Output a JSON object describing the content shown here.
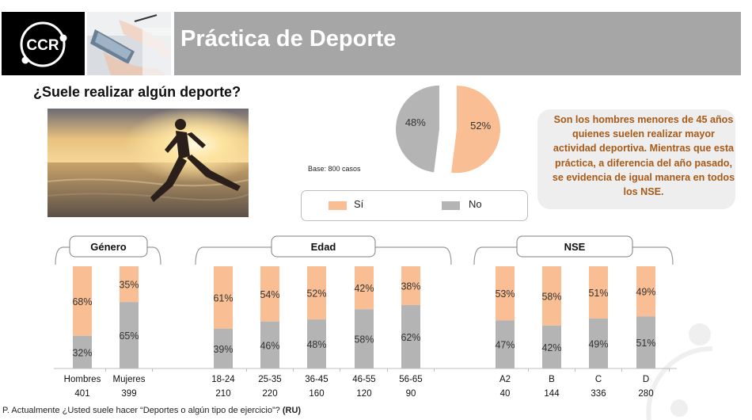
{
  "header": {
    "logo_text": "CCR",
    "title": "Práctica de Deporte"
  },
  "question": "¿Suele realizar algún deporte?",
  "base_note": "Base: 800 casos",
  "callout": "Son los hombres menores de 45 años quienes suelen realizar mayor actividad deportiva. Mientras que esta práctica, a diferencia del año pasado, se evidencia de igual manera en todos los NSE.",
  "legend": [
    {
      "label": "Sí",
      "color": "#f9be93"
    },
    {
      "label": "No",
      "color": "#b4b4b4"
    }
  ],
  "footnote": {
    "text": "P. Actualmente ¿Usted suele hacer “Deportes o algún tipo de ejercicio”?",
    "tag": "(RU)"
  },
  "chart_data": [
    {
      "type": "pie",
      "categories": [
        "Sí",
        "No"
      ],
      "values": [
        52,
        48
      ],
      "labels": [
        "52%",
        "48%"
      ],
      "colors": [
        "#f9be93",
        "#b4b4b4"
      ]
    },
    {
      "type": "bar",
      "stacked": true,
      "percent": true,
      "groups": [
        {
          "title": "Género",
          "categories": [
            "Hombres",
            "Mujeres"
          ],
          "bases": [
            401,
            399
          ]
        },
        {
          "title": "Edad",
          "categories": [
            "18-24",
            "25-35",
            "36-45",
            "46-55",
            "56-65"
          ],
          "bases": [
            210,
            220,
            160,
            120,
            90
          ]
        },
        {
          "title": "NSE",
          "categories": [
            "A2",
            "B",
            "C",
            "D"
          ],
          "bases": [
            40,
            144,
            336,
            280
          ]
        }
      ],
      "categories": [
        "Hombres",
        "Mujeres",
        "18-24",
        "25-35",
        "36-45",
        "46-55",
        "56-65",
        "A2",
        "B",
        "C",
        "D"
      ],
      "bases": [
        401,
        399,
        210,
        220,
        160,
        120,
        90,
        40,
        144,
        336,
        280
      ],
      "series": [
        {
          "name": "Sí",
          "color": "#f9be93",
          "values": [
            68,
            35,
            61,
            54,
            52,
            42,
            38,
            53,
            58,
            51,
            49
          ]
        },
        {
          "name": "No",
          "color": "#b4b4b4",
          "values": [
            32,
            65,
            39,
            46,
            48,
            58,
            62,
            47,
            42,
            49,
            51
          ]
        }
      ],
      "ylim": [
        0,
        100
      ]
    }
  ]
}
